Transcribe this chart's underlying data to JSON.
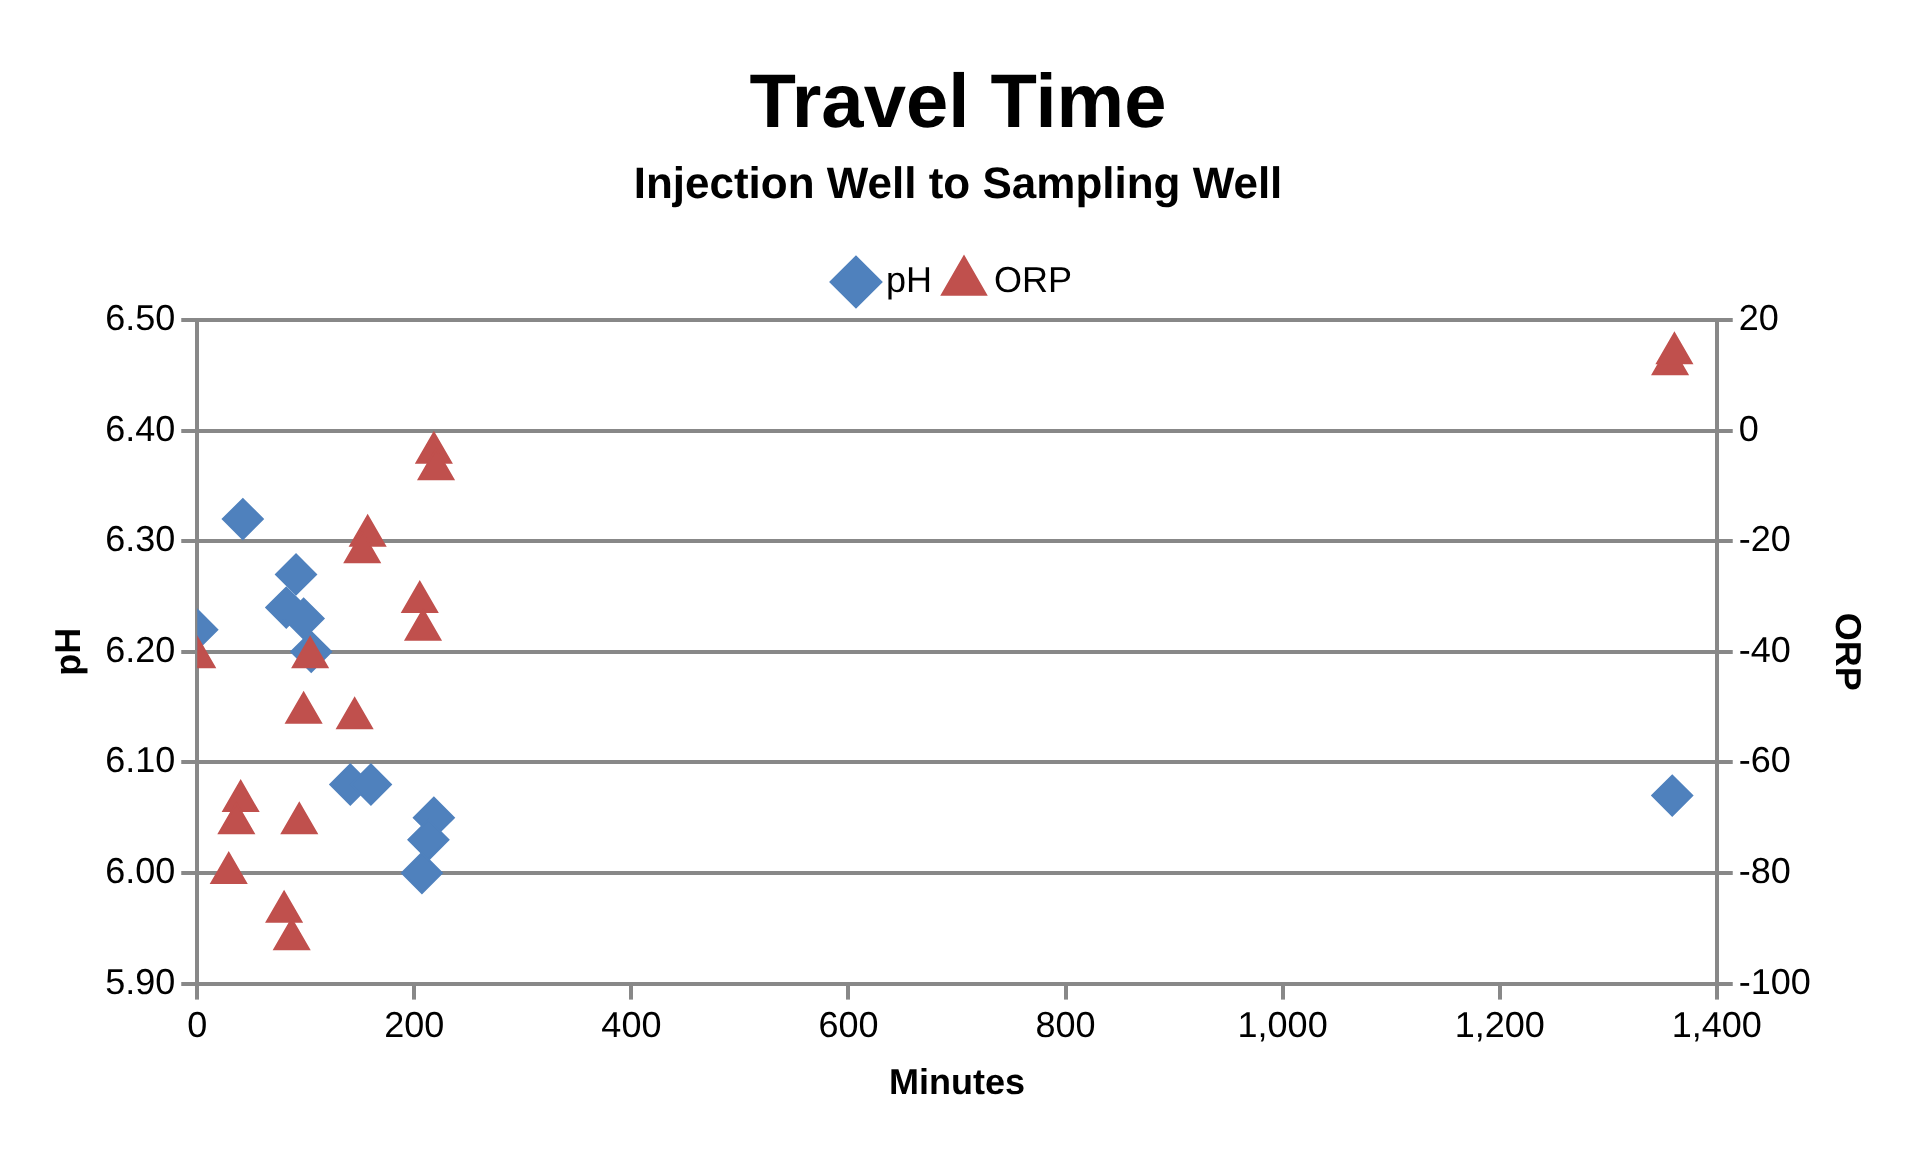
{
  "chart_data": {
    "type": "scatter",
    "title": "Travel Time",
    "subtitle": "Injection Well to Sampling Well",
    "xlabel": "Minutes",
    "ylabel": "pH",
    "y2label": "ORP",
    "series": [
      {
        "name": "pH",
        "color": "#4f81bd",
        "marker": "diamond",
        "x": [
          0,
          38,
          42,
          91,
          82,
          98,
          105,
          141,
          160,
          218,
          207,
          213,
          1359
        ],
        "values": [
          6.22,
          null,
          6.32,
          6.27,
          6.24,
          6.23,
          6.2,
          6.08,
          6.08,
          6.05,
          6.0,
          6.03,
          6.07
        ]
      },
      {
        "name": "ORP",
        "color": "#c0504d",
        "marker": "triangle",
        "axis": "y2",
        "x": [
          0,
          40,
          36,
          29,
          94,
          80,
          87,
          104,
          98,
          145,
          157,
          152,
          205,
          208,
          218,
          220,
          1357,
          1361
        ],
        "values": [
          -41,
          -67,
          -71,
          -80,
          -71,
          -87,
          -92,
          -41,
          -51,
          -52,
          -19,
          -22,
          -31,
          -36,
          -4,
          -7,
          12,
          14
        ]
      }
    ],
    "xlim": [
      0,
      1400
    ],
    "xticks": [
      0,
      200,
      400,
      600,
      800,
      {
        "value": 1000,
        "label": "1,000"
      },
      {
        "value": 1200,
        "label": "1,200"
      },
      {
        "value": 1400,
        "label": "1,400"
      }
    ],
    "ylim": [
      5.9,
      6.5
    ],
    "yticks": [
      {
        "value": 5.9,
        "label": "5.90"
      },
      {
        "value": 6.0,
        "label": "6.00"
      },
      {
        "value": 6.1,
        "label": "6.10"
      },
      {
        "value": 6.2,
        "label": "6.20"
      },
      {
        "value": 6.3,
        "label": "6.30"
      },
      {
        "value": 6.4,
        "label": "6.40"
      },
      {
        "value": 6.5,
        "label": "6.50"
      }
    ],
    "y2lim": [
      -100,
      20
    ],
    "y2ticks": [
      -100,
      -80,
      -60,
      -40,
      -20,
      0,
      20
    ],
    "grid": "y",
    "legend": "top"
  }
}
